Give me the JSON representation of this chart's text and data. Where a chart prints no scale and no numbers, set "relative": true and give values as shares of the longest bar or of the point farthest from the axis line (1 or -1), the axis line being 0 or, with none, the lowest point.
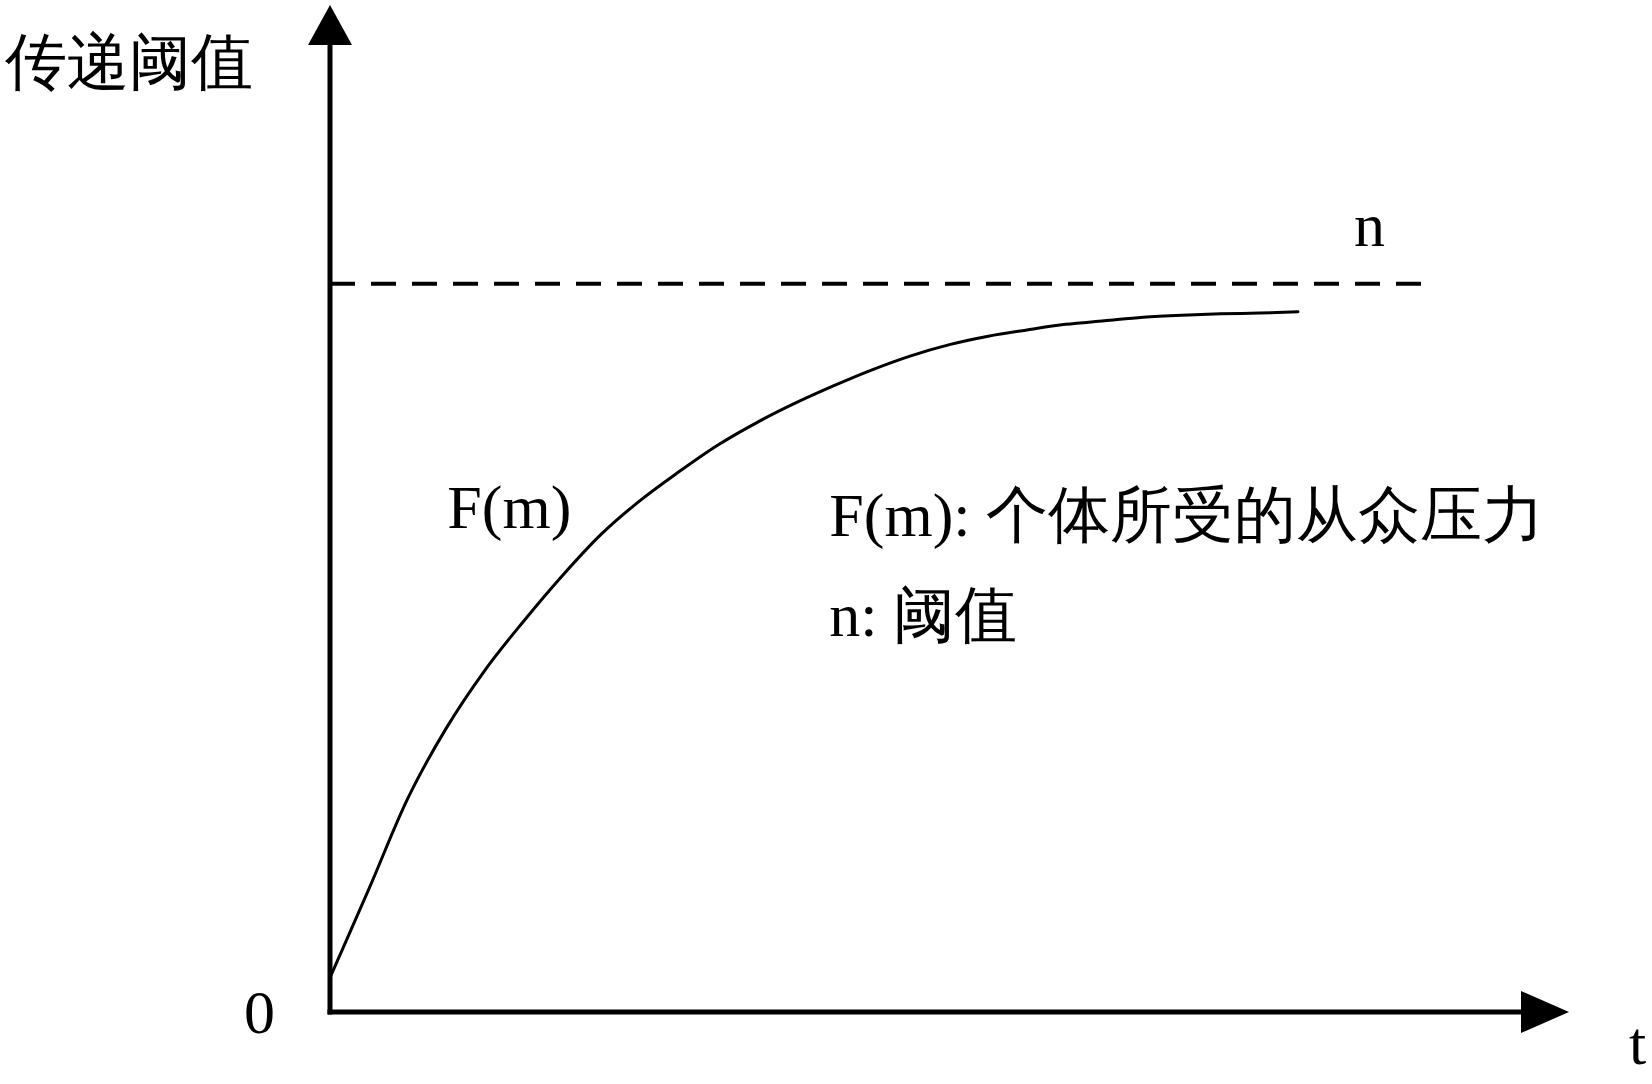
{
  "chart_data": {
    "type": "line",
    "ylabel": "传递阈值",
    "xlabel": "t",
    "relative": true,
    "marker": "none",
    "categories": [
      null,
      null,
      null,
      null,
      null,
      null,
      null,
      null,
      null,
      null,
      null,
      null,
      null,
      null,
      null,
      null,
      null,
      null,
      null,
      null,
      null,
      null,
      null,
      null,
      null,
      null,
      null,
      null,
      null,
      null,
      null,
      null,
      null
    ],
    "series": [
      {
        "name": "F(m)",
        "color": "#000000",
        "values": [
          0.049,
          0.175,
          0.304,
          0.405,
          0.488,
          0.558,
          0.623,
          0.682,
          0.73,
          0.771,
          0.809,
          0.841,
          0.869,
          0.894,
          0.917,
          0.937,
          0.953,
          0.965,
          0.974,
          0.982,
          0.987,
          0.992,
          0.995,
          0.997,
          0.998,
          1,
          null,
          null,
          null,
          null,
          null,
          null,
          null
        ]
      }
    ],
    "ref_lines": [
      {
        "axis": "y",
        "value": 1.04,
        "label": "n",
        "color": "#000000",
        "line_style": "dashed"
      }
    ],
    "annotations": [
      "0",
      "F(m): 个体所受的从众压力",
      "n: 阈值"
    ]
  }
}
